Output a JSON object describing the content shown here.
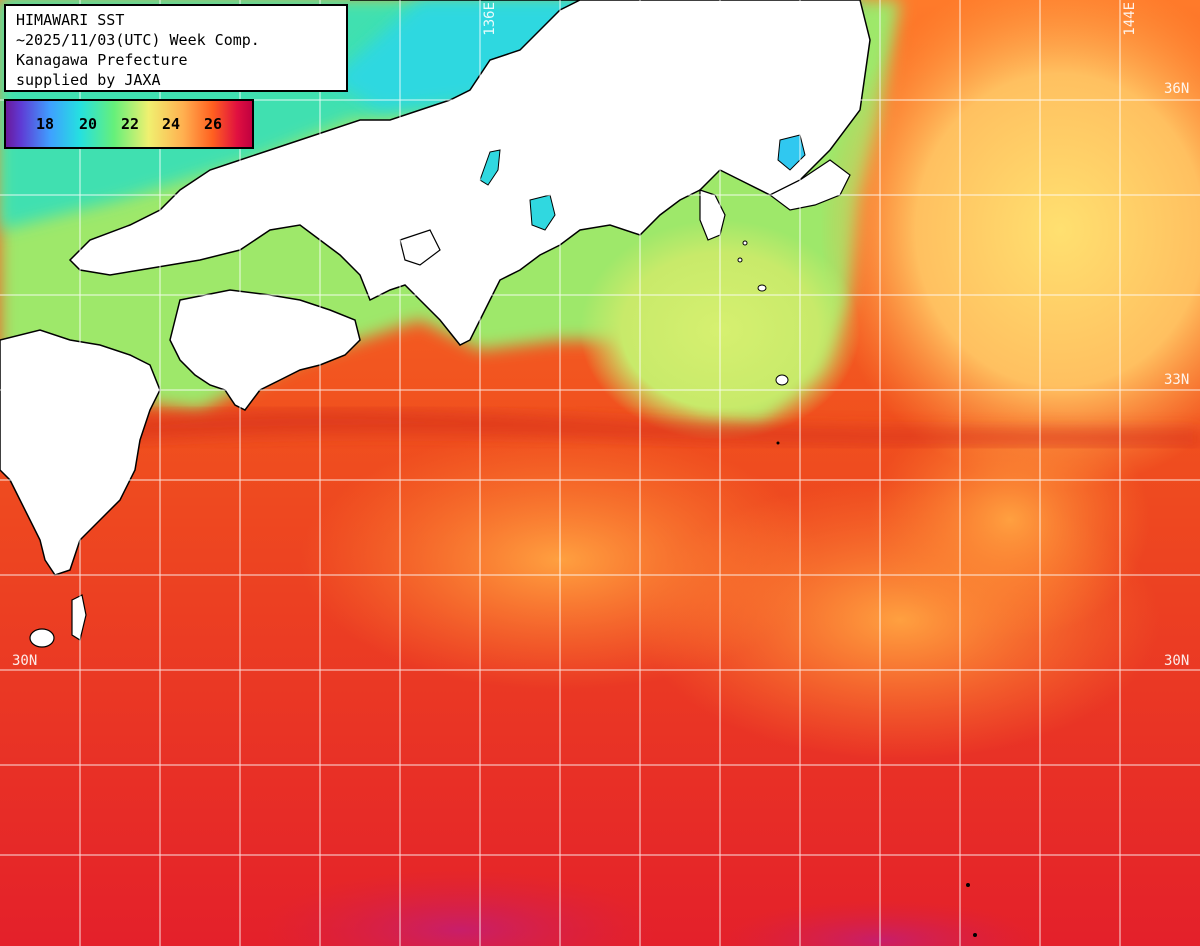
{
  "header": {
    "lines": [
      "HIMAWARI SST",
      "~2025/11/03(UTC) Week Comp.",
      "Kanagawa Prefecture",
      "supplied by JAXA"
    ]
  },
  "legend": {
    "ticks": [
      "18",
      "20",
      "22",
      "24",
      "26"
    ],
    "colors": [
      "#6a1a9c",
      "#3fa0ff",
      "#25e0e0",
      "#66f07a",
      "#f0f070",
      "#ffb050",
      "#ff6020",
      "#e01040"
    ]
  },
  "grid_labels": {
    "lon_left": "136E",
    "lon_right": "144E",
    "lat_36_right": "36N",
    "lat_33_right": "33N",
    "lat_30_left": "30N",
    "lat_30_right": "30N"
  },
  "colors": {
    "land": "#ffffff",
    "coast": "#000000",
    "grid": "#ffffff",
    "sea_warm": "#e8281c",
    "sea_mid": "#ff8c2a",
    "sea_cool": "#b8f070",
    "sea_cold": "#30e6d0"
  }
}
